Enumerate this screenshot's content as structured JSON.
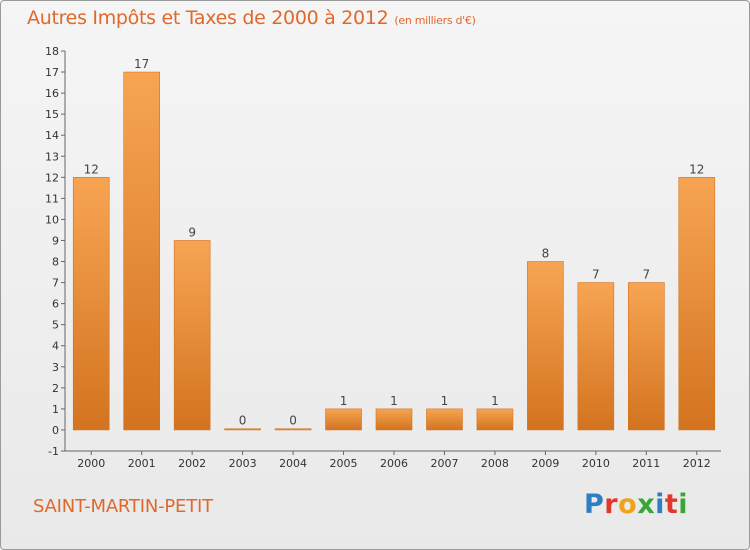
{
  "header": {
    "title": "Autres Impôts et Taxes de 2000 à 2012",
    "unit": "(en milliers d'€)"
  },
  "footer": {
    "town": "SAINT-MARTIN-PETIT",
    "logo": "Proxiti",
    "logo_colors": [
      "#2e7fc1",
      "#e0392b",
      "#f0a21c",
      "#3aa63a",
      "#2e7fc1",
      "#e0392b",
      "#3aa63a"
    ]
  },
  "colors": {
    "bar_light": "#f7a553",
    "bar_dark": "#d3731f",
    "accent": "#e0682b"
  },
  "chart_data": {
    "type": "bar",
    "title": "Autres Impôts et Taxes de 2000 à 2012",
    "subtitle": "(en milliers d'€)",
    "categories": [
      "2000",
      "2001",
      "2002",
      "2003",
      "2004",
      "2005",
      "2006",
      "2007",
      "2008",
      "2009",
      "2010",
      "2011",
      "2012"
    ],
    "values": [
      12,
      17,
      9,
      0,
      0,
      1,
      1,
      1,
      1,
      8,
      7,
      7,
      12
    ],
    "data_labels": [
      "12",
      "17",
      "9",
      "0",
      "0",
      "1",
      "1",
      "1",
      "1",
      "8",
      "7",
      "7",
      "12"
    ],
    "ylim": [
      -1,
      18
    ],
    "yticks": [
      18,
      17,
      16,
      15,
      14,
      13,
      12,
      11,
      10,
      9,
      8,
      7,
      6,
      5,
      4,
      3,
      2,
      1,
      0,
      -1
    ],
    "ytick_labels": [
      "18",
      "17",
      "16",
      "15",
      "14",
      "13",
      "12",
      "11",
      "10",
      "9",
      "8",
      "7",
      "6",
      "5",
      "4",
      "3",
      "2",
      "1",
      "0",
      "-1"
    ],
    "xlabel": "",
    "ylabel": "",
    "grid": false,
    "legend": "none"
  }
}
